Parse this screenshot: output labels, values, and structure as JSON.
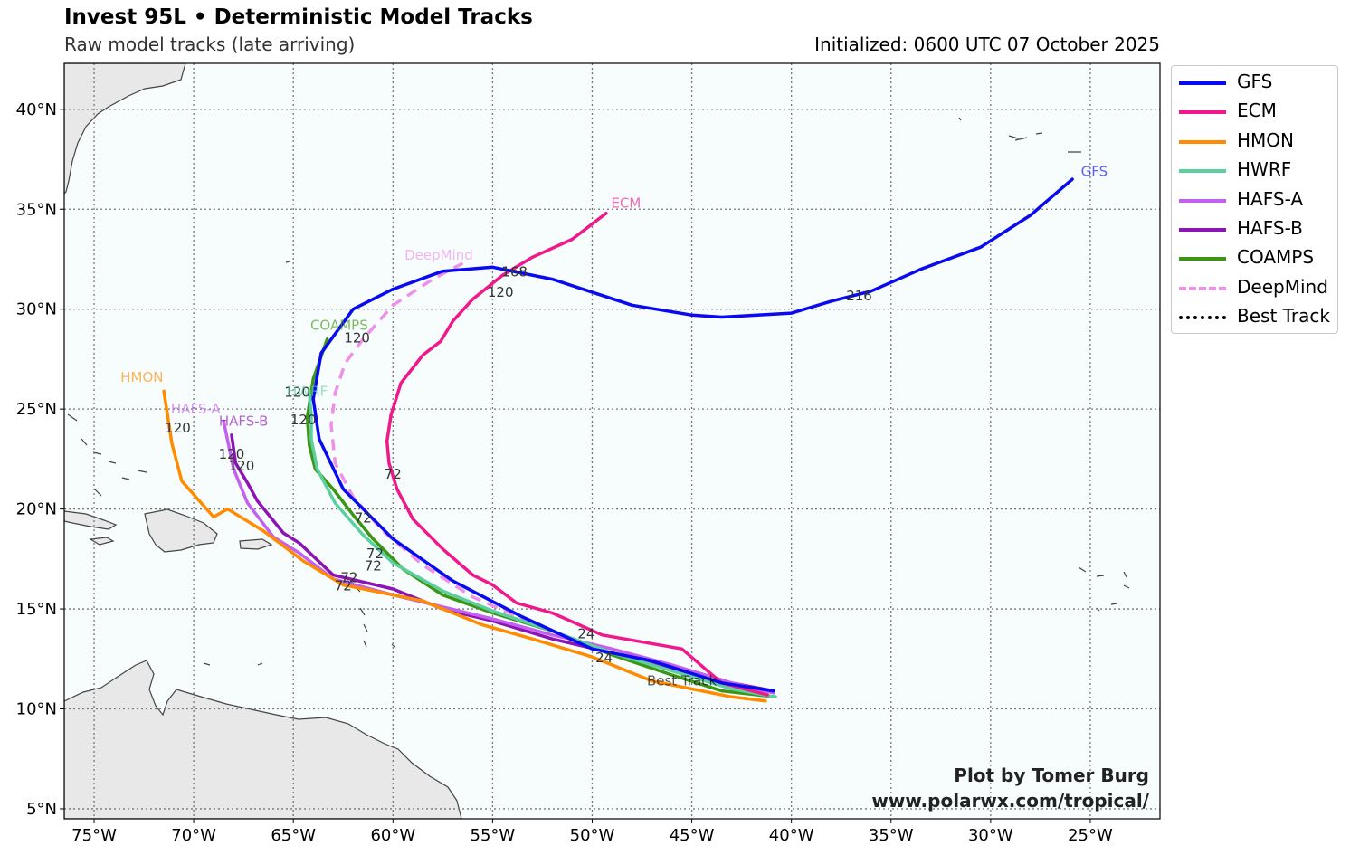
{
  "header": {
    "title": "Invest 95L • Deterministic Model Tracks",
    "subtitle": "Raw model tracks (late arriving)",
    "initialized": "Initialized: 0600 UTC 07 October 2025"
  },
  "credit": {
    "line1": "Plot by Tomer Burg",
    "line2": "www.polarwx.com/tropical/"
  },
  "axes": {
    "lon_range": [
      -76.5,
      -21.5
    ],
    "lat_range": [
      4.5,
      42.3
    ],
    "lon_ticks": [
      {
        "value": -75,
        "label": "75°W"
      },
      {
        "value": -70,
        "label": "70°W"
      },
      {
        "value": -65,
        "label": "65°W"
      },
      {
        "value": -60,
        "label": "60°W"
      },
      {
        "value": -55,
        "label": "55°W"
      },
      {
        "value": -50,
        "label": "50°W"
      },
      {
        "value": -45,
        "label": "45°W"
      },
      {
        "value": -40,
        "label": "40°W"
      },
      {
        "value": -35,
        "label": "35°W"
      },
      {
        "value": -30,
        "label": "30°W"
      },
      {
        "value": -25,
        "label": "25°W"
      }
    ],
    "lat_ticks": [
      {
        "value": 5,
        "label": "5°N"
      },
      {
        "value": 10,
        "label": "10°N"
      },
      {
        "value": 15,
        "label": "15°N"
      },
      {
        "value": 20,
        "label": "20°N"
      },
      {
        "value": 25,
        "label": "25°N"
      },
      {
        "value": 30,
        "label": "30°N"
      },
      {
        "value": 35,
        "label": "35°N"
      },
      {
        "value": 40,
        "label": "40°N"
      }
    ],
    "grid": true
  },
  "colors": {
    "ocean": "#f7fcfd",
    "land": "#e8e8e8",
    "coast": "#444444",
    "grid": "#777777"
  },
  "legend": [
    {
      "label": "GFS",
      "color": "#0a0af0",
      "style": "solid"
    },
    {
      "label": "ECM",
      "color": "#f0198c",
      "style": "solid"
    },
    {
      "label": "HMON",
      "color": "#ff8c00",
      "style": "solid"
    },
    {
      "label": "HWRF",
      "color": "#5ccf9e",
      "style": "solid"
    },
    {
      "label": "HAFS-A",
      "color": "#c460f0",
      "style": "solid"
    },
    {
      "label": "HAFS-B",
      "color": "#8c14b4",
      "style": "solid"
    },
    {
      "label": "COAMPS",
      "color": "#3c9614",
      "style": "solid"
    },
    {
      "label": "DeepMind",
      "color": "#ee90e8",
      "style": "dashed"
    },
    {
      "label": "Best Track",
      "color": "#000000",
      "style": "dotted"
    }
  ],
  "tracks": [
    {
      "model": "GFS",
      "color": "#0a0af0",
      "style": "solid",
      "points": [
        [
          -40.9,
          10.9
        ],
        [
          -43.5,
          11.3
        ],
        [
          -47,
          12.4
        ],
        [
          -50,
          13.0
        ],
        [
          -53.5,
          14.6
        ],
        [
          -57,
          16.4
        ],
        [
          -60,
          18.5
        ],
        [
          -62.5,
          21.0
        ],
        [
          -63.7,
          23.5
        ],
        [
          -64,
          25.5
        ],
        [
          -63.6,
          27.8
        ],
        [
          -62,
          30.0
        ],
        [
          -60,
          31.0
        ],
        [
          -57.5,
          31.9
        ],
        [
          -55,
          32.1
        ],
        [
          -52,
          31.5
        ],
        [
          -48,
          30.2
        ],
        [
          -45,
          29.7
        ],
        [
          -43.5,
          29.6
        ],
        [
          -40,
          29.8
        ],
        [
          -38,
          30.4
        ],
        [
          -36,
          30.9
        ],
        [
          -33.5,
          32.0
        ],
        [
          -30.5,
          33.1
        ],
        [
          -28,
          34.7
        ],
        [
          -25.9,
          36.5
        ]
      ],
      "tau_labels": [
        {
          "text": "24",
          "lon": -49.4,
          "lat": 12.6
        },
        {
          "text": "72",
          "lon": -61.5,
          "lat": 19.6
        },
        {
          "text": "120",
          "lon": -54.6,
          "lat": 30.9
        },
        {
          "text": "168",
          "lon": -53.9,
          "lat": 31.9
        },
        {
          "text": "216",
          "lon": -36.6,
          "lat": 30.7
        }
      ],
      "name_label": {
        "text": "GFS",
        "lon": -24.8,
        "lat": 36.9
      }
    },
    {
      "model": "ECM",
      "color": "#f0198c",
      "style": "solid",
      "points": [
        [
          -41.2,
          10.7
        ],
        [
          -43.5,
          11.3
        ],
        [
          -45.5,
          13.0
        ],
        [
          -49.5,
          13.7
        ],
        [
          -52,
          14.8
        ],
        [
          -53.8,
          15.3
        ],
        [
          -55,
          16.2
        ],
        [
          -56,
          16.7
        ],
        [
          -57.5,
          18.0
        ],
        [
          -59,
          19.5
        ],
        [
          -59.8,
          21.0
        ],
        [
          -60.2,
          22.3
        ],
        [
          -60.3,
          23.4
        ],
        [
          -60.1,
          24.7
        ],
        [
          -59.6,
          26.3
        ],
        [
          -58.5,
          27.7
        ],
        [
          -57.6,
          28.4
        ],
        [
          -57,
          29.4
        ],
        [
          -56,
          30.5
        ],
        [
          -54.5,
          31.7
        ],
        [
          -53,
          32.6
        ],
        [
          -51,
          33.5
        ],
        [
          -49.3,
          34.8
        ]
      ],
      "tau_labels": [
        {
          "text": "24",
          "lon": -50.3,
          "lat": 13.8
        },
        {
          "text": "72",
          "lon": -60.0,
          "lat": 21.8
        }
      ],
      "name_label": {
        "text": "ECM",
        "lon": -48.3,
        "lat": 35.3
      }
    },
    {
      "model": "HMON",
      "color": "#ff8c00",
      "style": "solid",
      "points": [
        [
          -41.3,
          10.4
        ],
        [
          -43,
          10.6
        ],
        [
          -47,
          11.4
        ],
        [
          -50,
          12.6
        ],
        [
          -53,
          13.5
        ],
        [
          -55.5,
          14.2
        ],
        [
          -58.5,
          15.4
        ],
        [
          -62.5,
          16.2
        ],
        [
          -64.5,
          17.4
        ],
        [
          -66.5,
          18.9
        ],
        [
          -68.3,
          20.0
        ],
        [
          -69,
          19.6
        ],
        [
          -70.6,
          21.4
        ],
        [
          -71.1,
          23.3
        ],
        [
          -71.5,
          25.9
        ]
      ],
      "tau_labels": [
        {
          "text": "120",
          "lon": -70.8,
          "lat": 24.1
        }
      ],
      "name_label": {
        "text": "HMON",
        "lon": -72.6,
        "lat": 26.6
      }
    },
    {
      "model": "HWRF",
      "color": "#5ccf9e",
      "style": "solid",
      "points": [
        [
          -40.8,
          10.6
        ],
        [
          -43,
          11.0
        ],
        [
          -46,
          11.9
        ],
        [
          -49,
          12.8
        ],
        [
          -52,
          13.9
        ],
        [
          -55,
          14.9
        ],
        [
          -57.5,
          15.9
        ],
        [
          -60,
          17.3
        ],
        [
          -61.5,
          18.7
        ],
        [
          -62.9,
          20.3
        ],
        [
          -63.8,
          22.0
        ],
        [
          -64.1,
          23.5
        ],
        [
          -64.1,
          24.6
        ],
        [
          -64.2,
          25.9
        ]
      ],
      "tau_labels": [
        {
          "text": "72",
          "lon": -60.9,
          "lat": 17.8
        },
        {
          "text": "120",
          "lon": -64.5,
          "lat": 24.5
        }
      ],
      "name_label": {
        "text": "HWRF",
        "lon": -64.3,
        "lat": 25.9
      }
    },
    {
      "model": "HAFS-A",
      "color": "#c460f0",
      "style": "solid",
      "points": [
        [
          -40.9,
          10.8
        ],
        [
          -43,
          11.3
        ],
        [
          -46,
          12.2
        ],
        [
          -49,
          13.0
        ],
        [
          -52,
          13.7
        ],
        [
          -55,
          14.5
        ],
        [
          -57.5,
          15.1
        ],
        [
          -60,
          15.7
        ],
        [
          -63,
          16.5
        ],
        [
          -64.7,
          17.8
        ],
        [
          -66,
          18.6
        ],
        [
          -67.3,
          20.3
        ],
        [
          -68,
          22.0
        ],
        [
          -68.5,
          24.4
        ]
      ],
      "tau_labels": [
        {
          "text": "72",
          "lon": -62.5,
          "lat": 16.2
        },
        {
          "text": "120",
          "lon": -68.1,
          "lat": 22.8
        }
      ],
      "name_label": {
        "text": "HAFS-A",
        "lon": -69.9,
        "lat": 25.0
      }
    },
    {
      "model": "HAFS-B",
      "color": "#8c14b4",
      "style": "solid",
      "points": [
        [
          -40.9,
          10.9
        ],
        [
          -43,
          11.3
        ],
        [
          -46,
          12.0
        ],
        [
          -49,
          12.8
        ],
        [
          -52,
          13.5
        ],
        [
          -55,
          14.4
        ],
        [
          -57.5,
          15.0
        ],
        [
          -60,
          16.0
        ],
        [
          -63,
          16.7
        ],
        [
          -64.7,
          18.3
        ],
        [
          -65.5,
          18.8
        ],
        [
          -66.8,
          20.4
        ],
        [
          -67.3,
          21.3
        ],
        [
          -67.9,
          22.3
        ],
        [
          -68.1,
          23.7
        ]
      ],
      "tau_labels": [
        {
          "text": "72",
          "lon": -62.2,
          "lat": 16.6
        },
        {
          "text": "120",
          "lon": -67.6,
          "lat": 22.2
        }
      ],
      "name_label": {
        "text": "HAFS-B",
        "lon": -67.5,
        "lat": 24.4
      }
    },
    {
      "model": "COAMPS",
      "color": "#3c9614",
      "style": "solid",
      "points": [
        [
          -40.8,
          10.6
        ],
        [
          -43.5,
          10.9
        ],
        [
          -46,
          11.7
        ],
        [
          -49,
          12.7
        ],
        [
          -52,
          13.9
        ],
        [
          -55,
          14.8
        ],
        [
          -57.5,
          15.7
        ],
        [
          -59.5,
          17.0
        ],
        [
          -61,
          18.5
        ],
        [
          -62,
          19.7
        ],
        [
          -63,
          21.0
        ],
        [
          -63.9,
          22.0
        ],
        [
          -64.2,
          23.2
        ],
        [
          -64.3,
          24.6
        ],
        [
          -64,
          26.5
        ],
        [
          -63.3,
          28.5
        ]
      ],
      "tau_labels": [
        {
          "text": "72",
          "lon": -61.0,
          "lat": 17.2
        },
        {
          "text": "120",
          "lon": -64.8,
          "lat": 25.9
        }
      ],
      "name_label": {
        "text": "COAMPS",
        "lon": -62.7,
        "lat": 29.2
      }
    },
    {
      "model": "DeepMind",
      "color": "#ee90e8",
      "style": "dashed",
      "points": [
        [
          -40.9,
          10.9
        ],
        [
          -43.5,
          11.3
        ],
        [
          -47,
          12.2
        ],
        [
          -50,
          13.1
        ],
        [
          -53,
          14.3
        ],
        [
          -56,
          15.6
        ],
        [
          -58.5,
          17.2
        ],
        [
          -60.5,
          18.9
        ],
        [
          -62,
          20.6
        ],
        [
          -62.9,
          22.3
        ],
        [
          -63.1,
          24.2
        ],
        [
          -62.9,
          25.8
        ],
        [
          -62.4,
          27.3
        ],
        [
          -61.5,
          28.5
        ],
        [
          -60,
          30.2
        ],
        [
          -58,
          31.5
        ],
        [
          -56.5,
          32.3
        ]
      ],
      "tau_labels": [
        {
          "text": "120",
          "lon": -61.8,
          "lat": 28.6
        }
      ],
      "name_label": {
        "text": "DeepMind",
        "lon": -57.7,
        "lat": 32.7
      }
    },
    {
      "model": "Best Track",
      "color": "#000000",
      "style": "dotted",
      "points": [
        [
          -40.9,
          10.9
        ],
        [
          -42,
          11.1
        ],
        [
          -43.5,
          11.3
        ]
      ],
      "tau_labels": [],
      "name_label": {
        "text": "Best Track",
        "lon": -45.5,
        "lat": 11.4
      }
    }
  ]
}
